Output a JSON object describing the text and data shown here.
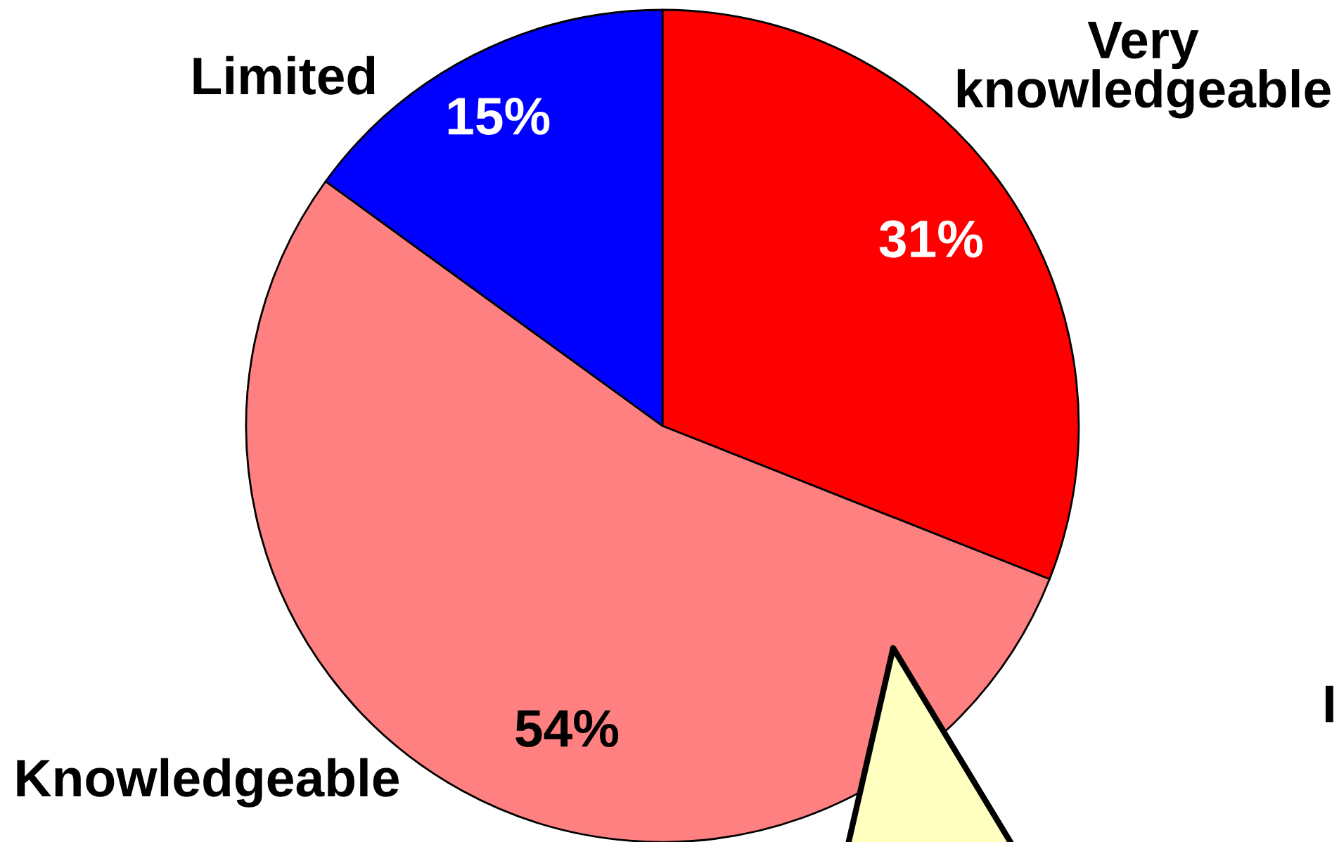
{
  "chart_data": {
    "type": "pie",
    "categories": [
      "Very\nknowledgeable",
      "Knowledgeable",
      "Limited"
    ],
    "values": [
      31,
      54,
      15
    ],
    "colors": [
      "#ff0000",
      "#ff8080",
      "#0000ff"
    ],
    "value_labels": [
      "31%",
      "54%",
      "15%"
    ],
    "annotations": [
      "I"
    ]
  }
}
